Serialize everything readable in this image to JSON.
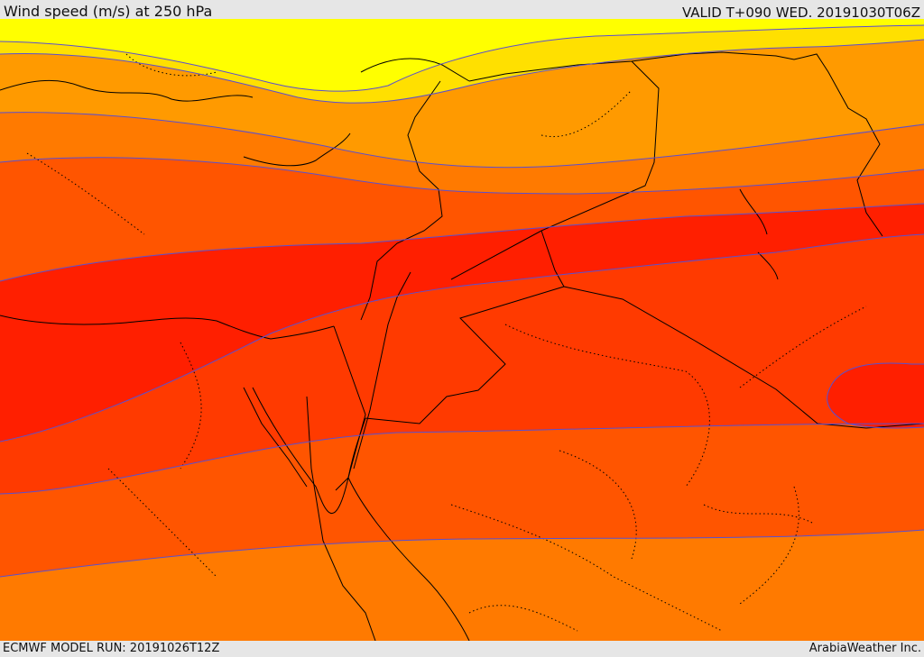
{
  "header": {
    "title": "Wind speed (m/s) at 250 hPa",
    "valid": "VALID T+090 WED. 20191030T06Z"
  },
  "footer": {
    "model_run": "ECMWF MODEL RUN: 20191026T12Z",
    "provider": "ArabiaWeather Inc."
  },
  "colors": {
    "band_1": "#ffff00",
    "band_2": "#ffe000",
    "band_3": "#ffbf00",
    "band_4": "#ff9a00",
    "band_5": "#ff7a00",
    "band_6": "#ff5500",
    "band_7": "#ff3a00",
    "band_8": "#ff1f00",
    "isotach_line": "#5a4fd0",
    "boundary_line": "#000000"
  }
}
